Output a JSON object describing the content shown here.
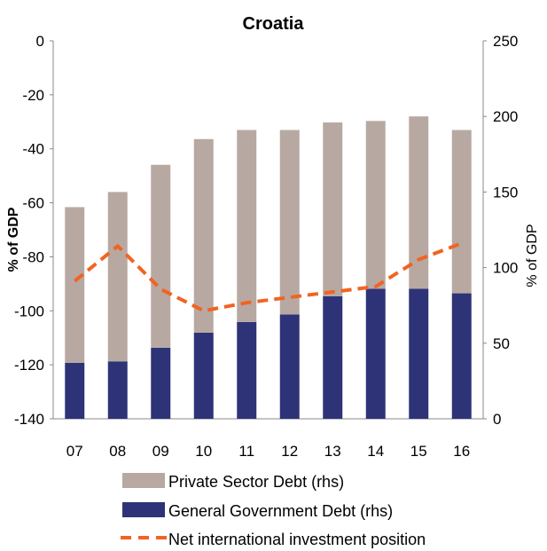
{
  "chart_data": {
    "type": "bar",
    "title": "Croatia",
    "categories": [
      "07",
      "08",
      "09",
      "10",
      "11",
      "12",
      "13",
      "14",
      "15",
      "16"
    ],
    "y_left": {
      "label": "% of GDP",
      "ylim": [
        -140,
        0
      ],
      "ticks": [
        0,
        -20,
        -40,
        -60,
        -80,
        -100,
        -120,
        -140
      ]
    },
    "y_right": {
      "label": "% of GDP",
      "ylim": [
        0,
        250
      ],
      "ticks": [
        250,
        200,
        150,
        100,
        50,
        0
      ]
    },
    "series": [
      {
        "name": "General Government Debt (rhs)",
        "type": "bar-stacked",
        "axis": "right",
        "color": "#2e3377",
        "values": [
          37,
          38,
          47,
          57,
          64,
          69,
          81,
          86,
          86,
          83
        ]
      },
      {
        "name": "Private Sector Debt (rhs)",
        "type": "bar-stacked",
        "axis": "right",
        "color": "#b7a9a2",
        "values": [
          103,
          112,
          121,
          128,
          127,
          122,
          115,
          111,
          114,
          108
        ]
      },
      {
        "name": "Net international investment position",
        "type": "line-dashed",
        "axis": "left",
        "color": "#f26322",
        "values": [
          -89,
          -76,
          -92,
          -100,
          -97,
          -95,
          -93,
          -91,
          -81,
          -75
        ]
      }
    ],
    "legend": [
      "Private Sector Debt (rhs)",
      "General Government Debt (rhs)",
      "Net international investment position"
    ],
    "legend_position": "bottom",
    "grid": false
  }
}
